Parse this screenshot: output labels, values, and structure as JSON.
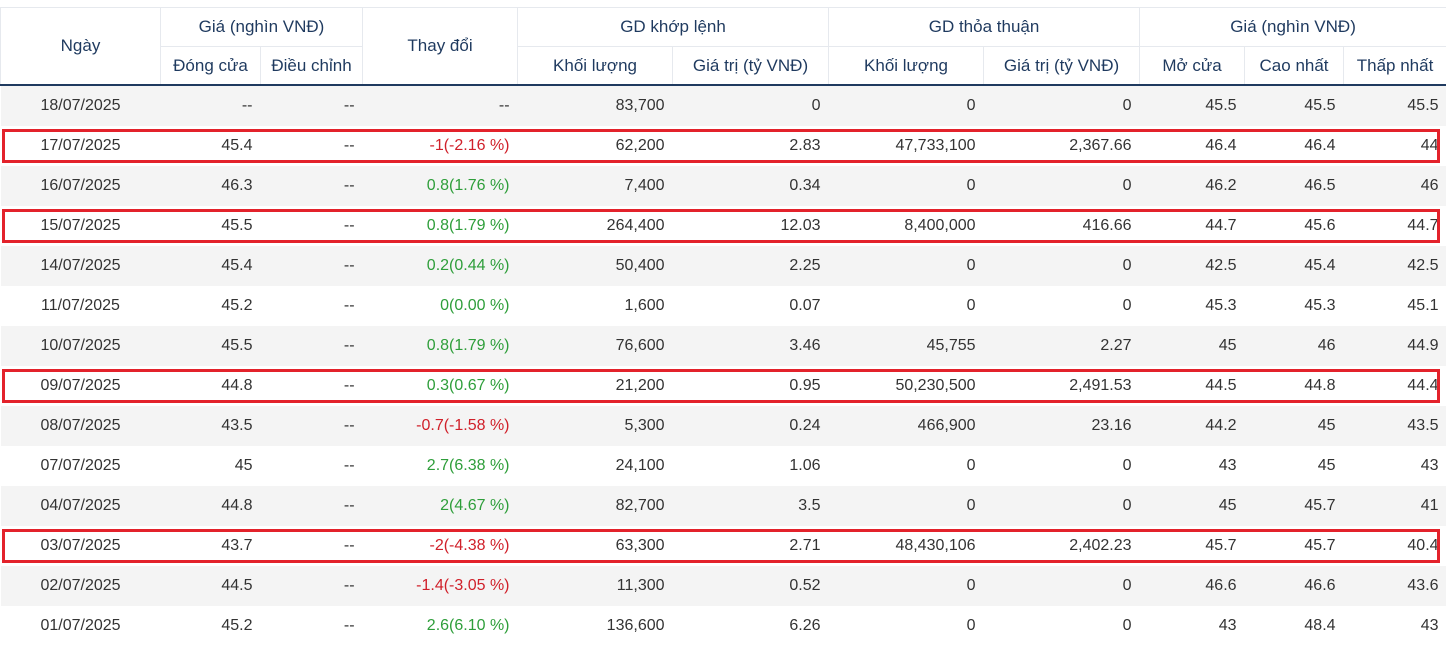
{
  "header": {
    "date": "Ngày",
    "price_group": "Giá (nghìn VNĐ)",
    "close": "Đóng cửa",
    "adjusted": "Điều chỉnh",
    "change": "Thay đổi",
    "matched_group": "GD khớp lệnh",
    "matched_volume": "Khối lượng",
    "matched_value": "Giá trị (tỷ VNĐ)",
    "deal_group": "GD thỏa thuận",
    "deal_volume": "Khối lượng",
    "deal_value": "Giá trị (tỷ VNĐ)",
    "price_group2": "Giá (nghìn VNĐ)",
    "open": "Mở cửa",
    "high": "Cao nhất",
    "low": "Thấp nhất"
  },
  "rows": [
    {
      "date": "18/07/2025",
      "close": "--",
      "adj": "--",
      "change": "--",
      "dir": "none",
      "mvol": "83,700",
      "mval": "0",
      "dvol": "0",
      "dval": "0",
      "open": "45.5",
      "high": "45.5",
      "low": "45.5",
      "highlight": false
    },
    {
      "date": "17/07/2025",
      "close": "45.4",
      "adj": "--",
      "change": "-1(-2.16 %)",
      "dir": "down",
      "mvol": "62,200",
      "mval": "2.83",
      "dvol": "47,733,100",
      "dval": "2,367.66",
      "open": "46.4",
      "high": "46.4",
      "low": "44",
      "highlight": true
    },
    {
      "date": "16/07/2025",
      "close": "46.3",
      "adj": "--",
      "change": "0.8(1.76 %)",
      "dir": "up",
      "mvol": "7,400",
      "mval": "0.34",
      "dvol": "0",
      "dval": "0",
      "open": "46.2",
      "high": "46.5",
      "low": "46",
      "highlight": false
    },
    {
      "date": "15/07/2025",
      "close": "45.5",
      "adj": "--",
      "change": "0.8(1.79 %)",
      "dir": "up",
      "mvol": "264,400",
      "mval": "12.03",
      "dvol": "8,400,000",
      "dval": "416.66",
      "open": "44.7",
      "high": "45.6",
      "low": "44.7",
      "highlight": true
    },
    {
      "date": "14/07/2025",
      "close": "45.4",
      "adj": "--",
      "change": "0.2(0.44 %)",
      "dir": "up",
      "mvol": "50,400",
      "mval": "2.25",
      "dvol": "0",
      "dval": "0",
      "open": "42.5",
      "high": "45.4",
      "low": "42.5",
      "highlight": false
    },
    {
      "date": "11/07/2025",
      "close": "45.2",
      "adj": "--",
      "change": "0(0.00 %)",
      "dir": "up",
      "mvol": "1,600",
      "mval": "0.07",
      "dvol": "0",
      "dval": "0",
      "open": "45.3",
      "high": "45.3",
      "low": "45.1",
      "highlight": false
    },
    {
      "date": "10/07/2025",
      "close": "45.5",
      "adj": "--",
      "change": "0.8(1.79 %)",
      "dir": "up",
      "mvol": "76,600",
      "mval": "3.46",
      "dvol": "45,755",
      "dval": "2.27",
      "open": "45",
      "high": "46",
      "low": "44.9",
      "highlight": false
    },
    {
      "date": "09/07/2025",
      "close": "44.8",
      "adj": "--",
      "change": "0.3(0.67 %)",
      "dir": "up",
      "mvol": "21,200",
      "mval": "0.95",
      "dvol": "50,230,500",
      "dval": "2,491.53",
      "open": "44.5",
      "high": "44.8",
      "low": "44.4",
      "highlight": true
    },
    {
      "date": "08/07/2025",
      "close": "43.5",
      "adj": "--",
      "change": "-0.7(-1.58 %)",
      "dir": "down",
      "mvol": "5,300",
      "mval": "0.24",
      "dvol": "466,900",
      "dval": "23.16",
      "open": "44.2",
      "high": "45",
      "low": "43.5",
      "highlight": false
    },
    {
      "date": "07/07/2025",
      "close": "45",
      "adj": "--",
      "change": "2.7(6.38 %)",
      "dir": "up",
      "mvol": "24,100",
      "mval": "1.06",
      "dvol": "0",
      "dval": "0",
      "open": "43",
      "high": "45",
      "low": "43",
      "highlight": false
    },
    {
      "date": "04/07/2025",
      "close": "44.8",
      "adj": "--",
      "change": "2(4.67 %)",
      "dir": "up",
      "mvol": "82,700",
      "mval": "3.5",
      "dvol": "0",
      "dval": "0",
      "open": "45",
      "high": "45.7",
      "low": "41",
      "highlight": false
    },
    {
      "date": "03/07/2025",
      "close": "43.7",
      "adj": "--",
      "change": "-2(-4.38 %)",
      "dir": "down",
      "mvol": "63,300",
      "mval": "2.71",
      "dvol": "48,430,106",
      "dval": "2,402.23",
      "open": "45.7",
      "high": "45.7",
      "low": "40.4",
      "highlight": true
    },
    {
      "date": "02/07/2025",
      "close": "44.5",
      "adj": "--",
      "change": "-1.4(-3.05 %)",
      "dir": "down",
      "mvol": "11,300",
      "mval": "0.52",
      "dvol": "0",
      "dval": "0",
      "open": "46.6",
      "high": "46.6",
      "low": "43.6",
      "highlight": false
    },
    {
      "date": "01/07/2025",
      "close": "45.2",
      "adj": "--",
      "change": "2.6(6.10 %)",
      "dir": "up",
      "mvol": "136,600",
      "mval": "6.26",
      "dvol": "0",
      "dval": "0",
      "open": "43",
      "high": "48.4",
      "low": "43",
      "highlight": false
    }
  ],
  "colors": {
    "up": "#2e9e3a",
    "down": "#d0202a",
    "highlight": "#e3222b",
    "header": "#1f3a5f"
  }
}
